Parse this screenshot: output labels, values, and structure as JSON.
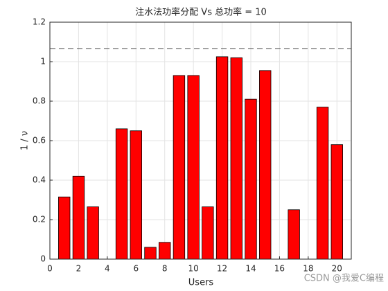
{
  "chart_data": {
    "type": "bar",
    "title": "注水法功率分配 Vs 总功率 = 10",
    "xlabel": "Users",
    "ylabel": "1 / ν",
    "x": [
      1,
      2,
      3,
      4,
      5,
      6,
      7,
      8,
      9,
      10,
      11,
      12,
      13,
      14,
      15,
      16,
      17,
      18,
      19,
      20
    ],
    "values": [
      0.315,
      0.42,
      0.265,
      0,
      0.66,
      0.65,
      0.06,
      0.085,
      0.93,
      0.93,
      0.265,
      1.025,
      1.02,
      0.81,
      0.955,
      0,
      0.25,
      0,
      0.77,
      0.58
    ],
    "color": "#ff0000",
    "water_level": 1.065,
    "xlim": [
      0,
      21
    ],
    "xticks": [
      0,
      2,
      4,
      6,
      8,
      10,
      12,
      14,
      16,
      18,
      20
    ],
    "ylim": [
      0,
      1.2
    ],
    "yticks": [
      0,
      0.2,
      0.4,
      0.6,
      0.8,
      1,
      1.2
    ],
    "grid": true,
    "watermark": "CSDN @我爱C编程"
  }
}
